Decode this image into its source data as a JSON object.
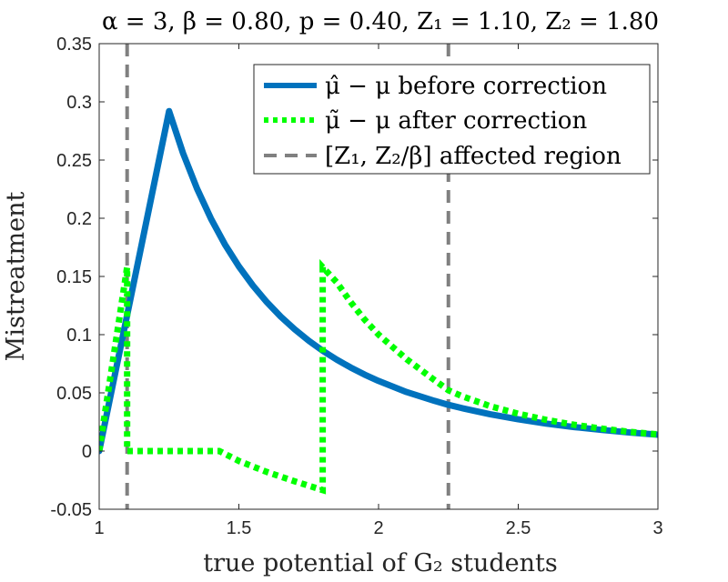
{
  "chart_data": {
    "type": "line",
    "title": "α = 3, β = 0.80, p = 0.40, Z₁ = 1.10, Z₂ = 1.80",
    "xlabel": "true potential of G₂ students",
    "ylabel": "Mistreatment",
    "xlim": [
      1,
      3
    ],
    "ylim": [
      -0.05,
      0.35
    ],
    "xticks": [
      1,
      1.5,
      2,
      2.5,
      3
    ],
    "xtick_labels": [
      "1",
      "1.5",
      "2",
      "2.5",
      "3"
    ],
    "yticks": [
      -0.05,
      0,
      0.05,
      0.1,
      0.15,
      0.2,
      0.25,
      0.3,
      0.35
    ],
    "ytick_labels": [
      "-0.05",
      "0",
      "0.05",
      "0.1",
      "0.15",
      "0.2",
      "0.25",
      "0.3",
      "0.35"
    ],
    "grid": false,
    "legend_position": "top-right",
    "series": [
      {
        "name": "μ̂ − μ before correction",
        "style": "solid",
        "color": "#0072BD",
        "x": [
          1.0,
          1.25,
          1.3,
          1.35,
          1.4,
          1.45,
          1.5,
          1.55,
          1.6,
          1.65,
          1.7,
          1.75,
          1.8,
          1.85,
          1.9,
          1.95,
          2.0,
          2.1,
          2.2,
          2.25,
          2.3,
          2.4,
          2.5,
          2.6,
          2.7,
          2.8,
          2.9,
          3.0
        ],
        "values": [
          0.0,
          0.292,
          0.2559,
          0.2255,
          0.1997,
          0.1776,
          0.1586,
          0.1422,
          0.128,
          0.1155,
          0.1045,
          0.0948,
          0.0862,
          0.0786,
          0.0718,
          0.0657,
          0.0602,
          0.0507,
          0.0431,
          0.0397,
          0.0368,
          0.0316,
          0.0273,
          0.0236,
          0.0206,
          0.0181,
          0.0159,
          0.0141
        ]
      },
      {
        "name": "μ̃ − μ after correction",
        "style": "dotted",
        "color": "#00FF00",
        "x": [
          1.0,
          1.1,
          1.1,
          1.25,
          1.43,
          1.5,
          1.6,
          1.7,
          1.8,
          1.8,
          1.85,
          1.9,
          1.95,
          2.0,
          2.1,
          2.2,
          2.25,
          2.3,
          2.4,
          2.5,
          2.6,
          2.7,
          2.8,
          2.9,
          3.0
        ],
        "values": [
          0.0,
          0.158,
          0.0,
          0.0,
          0.0,
          -0.0085,
          -0.018,
          -0.026,
          -0.0335,
          0.158,
          0.145,
          0.128,
          0.113,
          0.1,
          0.079,
          0.061,
          0.0522,
          0.047,
          0.0385,
          0.032,
          0.0268,
          0.0226,
          0.0192,
          0.0165,
          0.0143
        ]
      },
      {
        "name": "[Z₁, Z₂/β] affected region",
        "style": "dashed",
        "color": "#808080",
        "vertical_x": [
          1.1,
          2.25
        ]
      }
    ]
  }
}
